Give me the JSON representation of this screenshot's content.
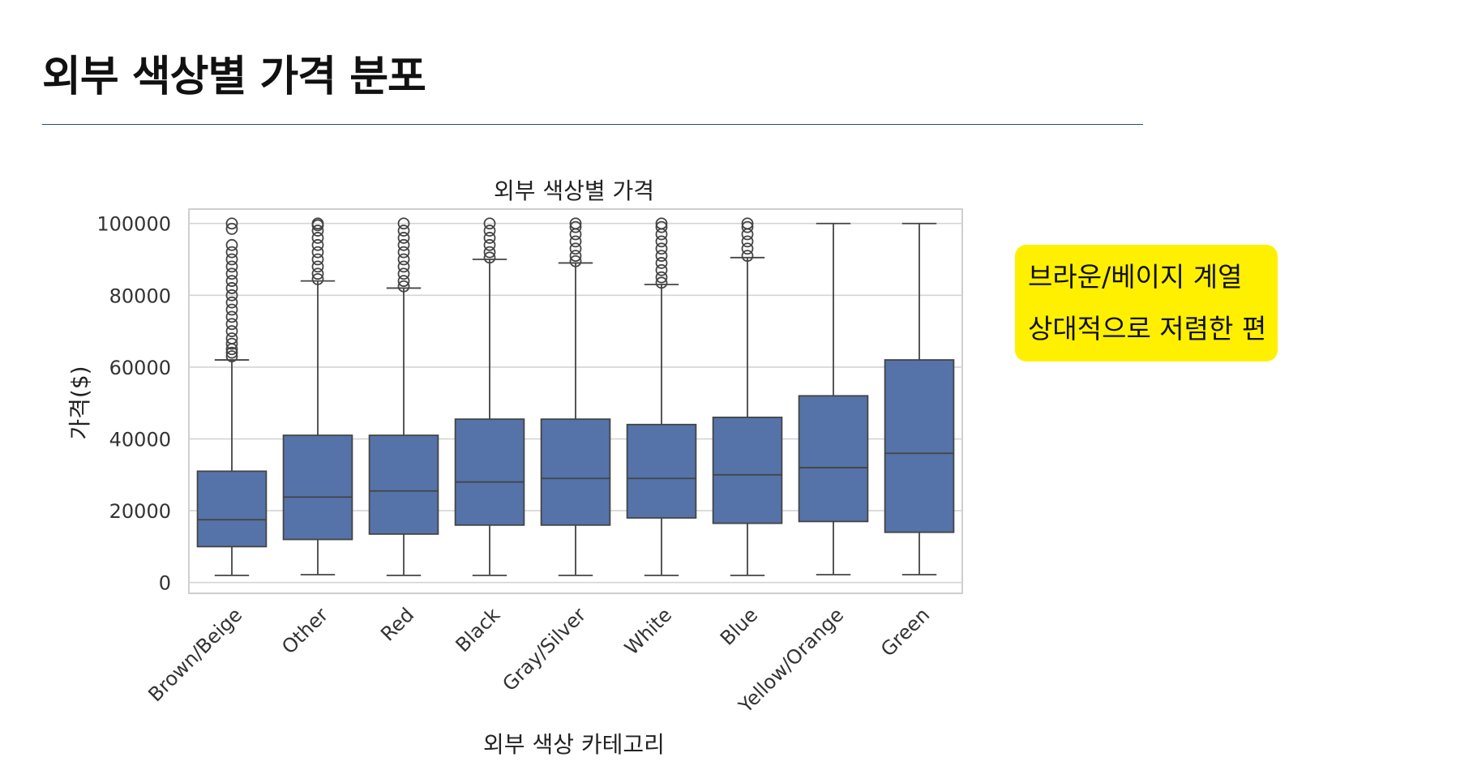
{
  "page": {
    "title": "외부 색상별 가격 분포"
  },
  "note": {
    "line1": "브라운/베이지 계열",
    "line2": "상대적으로 저렴한 편"
  },
  "chart_data": {
    "type": "box",
    "title": "외부 색상별 가격",
    "xlabel": "외부 색상 카테고리",
    "ylabel": "가격($)",
    "ylim": [
      -3000,
      104000
    ],
    "yticks": [
      0,
      20000,
      40000,
      60000,
      80000,
      100000
    ],
    "grid": true,
    "box_color": "#5573a8",
    "categories": [
      "Brown/Beige",
      "Other",
      "Red",
      "Black",
      "Gray/Silver",
      "White",
      "Blue",
      "Yellow/Orange",
      "Green"
    ],
    "boxes": [
      {
        "category": "Brown/Beige",
        "min": 2000,
        "q1": 10000,
        "median": 17500,
        "q3": 31000,
        "max": 62000,
        "outliers": [
          63000,
          64000,
          65000,
          66500,
          68000,
          70000,
          72000,
          74000,
          76000,
          78000,
          80000,
          82000,
          84000,
          86000,
          88000,
          90000,
          92000,
          94000,
          98500,
          100000
        ]
      },
      {
        "category": "Other",
        "min": 2200,
        "q1": 12000,
        "median": 23800,
        "q3": 41000,
        "max": 84000,
        "outliers": [
          84500,
          86000,
          88000,
          90000,
          92000,
          94000,
          96000,
          98000,
          99500,
          100000
        ]
      },
      {
        "category": "Red",
        "min": 2000,
        "q1": 13500,
        "median": 25500,
        "q3": 41000,
        "max": 82000,
        "outliers": [
          82500,
          84000,
          86000,
          88000,
          90000,
          92000,
          94000,
          96000,
          98000,
          100000
        ]
      },
      {
        "category": "Black",
        "min": 2000,
        "q1": 16000,
        "median": 28000,
        "q3": 45500,
        "max": 90000,
        "outliers": [
          90500,
          92000,
          94000,
          96000,
          98000,
          100000
        ]
      },
      {
        "category": "Gray/Silver",
        "min": 2000,
        "q1": 16000,
        "median": 29000,
        "q3": 45500,
        "max": 89000,
        "outliers": [
          89500,
          91000,
          93000,
          95000,
          97000,
          99000,
          100000
        ]
      },
      {
        "category": "White",
        "min": 2000,
        "q1": 18000,
        "median": 29000,
        "q3": 44000,
        "max": 83000,
        "outliers": [
          83500,
          85000,
          87000,
          89000,
          91000,
          93000,
          95000,
          97000,
          99000,
          100000
        ]
      },
      {
        "category": "Blue",
        "min": 2000,
        "q1": 16500,
        "median": 30000,
        "q3": 46000,
        "max": 90500,
        "outliers": [
          91000,
          93000,
          95000,
          97000,
          99000,
          100000
        ]
      },
      {
        "category": "Yellow/Orange",
        "min": 2200,
        "q1": 17000,
        "median": 32000,
        "q3": 52000,
        "max": 100000,
        "outliers": []
      },
      {
        "category": "Green",
        "min": 2200,
        "q1": 14000,
        "median": 36000,
        "q3": 62000,
        "max": 100000,
        "outliers": []
      }
    ]
  }
}
